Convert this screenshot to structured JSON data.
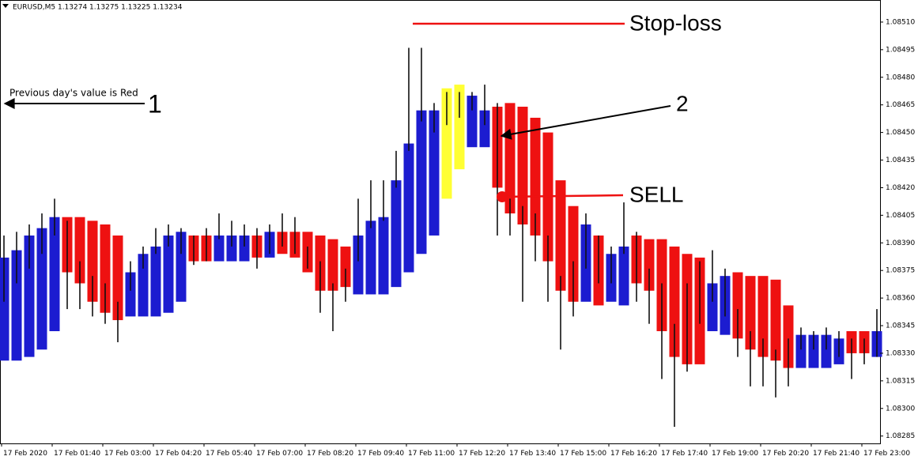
{
  "chart_data": {
    "type": "indicator",
    "title": "EURUSD,M5  1.13274 1.13275 1.13225 1.13234",
    "annotations": {
      "stop_loss": "Stop-loss",
      "sell": "SELL",
      "marker_1": "1",
      "marker_2": "2",
      "note_1": "Previous day's value is Red"
    },
    "categories": [
      "17 Feb 2020",
      null,
      null,
      null,
      "17 Feb 01:40",
      null,
      null,
      null,
      "17 Feb 03:00",
      null,
      null,
      null,
      "17 Feb 04:20",
      null,
      null,
      null,
      "17 Feb 05:40",
      null,
      null,
      null,
      "17 Feb 07:00",
      null,
      null,
      null,
      "17 Feb 08:20",
      null,
      null,
      null,
      "17 Feb 09:40",
      null,
      null,
      null,
      "17 Feb 11:00",
      null,
      null,
      null,
      "17 Feb 12:20",
      null,
      null,
      null,
      "17 Feb 13:40",
      null,
      null,
      null,
      "17 Feb 15:00",
      null,
      null,
      null,
      "17 Feb 16:20",
      null,
      null,
      null,
      "17 Feb 17:40",
      null,
      null,
      null,
      "17 Feb 19:00",
      null,
      null,
      null,
      "17 Feb 20:20",
      null,
      null,
      null,
      "17 Feb 21:40",
      null,
      null,
      null,
      "17 Feb 23:00",
      null,
      null,
      null,
      null,
      null
    ],
    "bars": {
      "top": [
        1.08382,
        1.08386,
        1.08394,
        1.08398,
        1.08404,
        1.08404,
        1.08404,
        1.08402,
        1.084,
        1.08394,
        1.08374,
        1.08384,
        1.08388,
        1.08394,
        1.08396,
        1.08394,
        1.08394,
        1.08394,
        1.08394,
        1.08394,
        1.08394,
        1.08396,
        1.08396,
        1.08396,
        1.08396,
        1.08394,
        1.08392,
        1.08388,
        1.08394,
        1.08402,
        1.08404,
        1.08424,
        1.08444,
        1.08462,
        1.08462,
        1.08474,
        1.08476,
        1.0847,
        1.08462,
        1.08464,
        1.08466,
        1.08464,
        1.08458,
        1.0845,
        1.08424,
        1.0841,
        1.084,
        1.08394,
        1.08384,
        1.08388,
        1.08394,
        1.08392,
        1.08392,
        1.08388,
        1.08384,
        1.08382,
        1.08368,
        1.08372,
        1.08374,
        1.08372,
        1.08372,
        1.0837,
        1.08356,
        1.0834,
        1.0834,
        1.0834,
        1.08338,
        1.08342,
        1.08342,
        1.08342
      ],
      "bottom": [
        1.08326,
        1.08326,
        1.08328,
        1.08332,
        1.08342,
        1.08374,
        1.08368,
        1.08358,
        1.08352,
        1.08348,
        1.0835,
        1.0835,
        1.0835,
        1.08352,
        1.08358,
        1.0838,
        1.0838,
        1.0838,
        1.0838,
        1.0838,
        1.08382,
        1.08382,
        1.08384,
        1.08382,
        1.08374,
        1.08364,
        1.08364,
        1.08366,
        1.08362,
        1.08362,
        1.08362,
        1.08366,
        1.08374,
        1.08384,
        1.08394,
        1.08414,
        1.0843,
        1.08442,
        1.08442,
        1.0842,
        1.08406,
        1.084,
        1.08394,
        1.0838,
        1.08364,
        1.08358,
        1.08358,
        1.08356,
        1.08358,
        1.08356,
        1.08368,
        1.08364,
        1.08342,
        1.08328,
        1.08324,
        1.08324,
        1.08342,
        1.0834,
        1.08338,
        1.08332,
        1.08328,
        1.08326,
        1.08322,
        1.08322,
        1.08322,
        1.08322,
        1.08324,
        1.0833,
        1.0833,
        1.08328
      ],
      "colors": [
        "#1c1cd0",
        "#1c1cd0",
        "#1c1cd0",
        "#1c1cd0",
        "#1c1cd0",
        "#ee1111",
        "#ee1111",
        "#ee1111",
        "#ee1111",
        "#ee1111",
        "#1c1cd0",
        "#1c1cd0",
        "#1c1cd0",
        "#1c1cd0",
        "#1c1cd0",
        "#ee1111",
        "#ee1111",
        "#1c1cd0",
        "#1c1cd0",
        "#1c1cd0",
        "#ee1111",
        "#1c1cd0",
        "#ee1111",
        "#ee1111",
        "#ee1111",
        "#ee1111",
        "#ee1111",
        "#ee1111",
        "#1c1cd0",
        "#1c1cd0",
        "#1c1cd0",
        "#1c1cd0",
        "#1c1cd0",
        "#1c1cd0",
        "#1c1cd0",
        "#ffff33",
        "#ffff33",
        "#1c1cd0",
        "#1c1cd0",
        "#ee1111",
        "#ee1111",
        "#ee1111",
        "#ee1111",
        "#ee1111",
        "#ee1111",
        "#ee1111",
        "#1c1cd0",
        "#ee1111",
        "#1c1cd0",
        "#1c1cd0",
        "#ee1111",
        "#ee1111",
        "#ee1111",
        "#ee1111",
        "#ee1111",
        "#ee1111",
        "#1c1cd0",
        "#1c1cd0",
        "#ee1111",
        "#ee1111",
        "#ee1111",
        "#ee1111",
        "#ee1111",
        "#1c1cd0",
        "#1c1cd0",
        "#1c1cd0",
        "#1c1cd0",
        "#ee1111",
        "#ee1111",
        "#1c1cd0"
      ]
    },
    "wicks": {
      "high": [
        1.08394,
        1.08396,
        1.084,
        1.08406,
        1.08414,
        1.08402,
        1.0838,
        1.08372,
        1.08368,
        1.08358,
        1.0838,
        1.08388,
        1.08398,
        1.084,
        1.08398,
        1.08394,
        1.08398,
        1.08406,
        1.08402,
        1.084,
        1.08398,
        1.084,
        1.08406,
        1.08404,
        1.08388,
        1.0838,
        1.08368,
        1.08376,
        1.08414,
        1.08424,
        1.08424,
        1.0844,
        1.08496,
        1.08496,
        1.08466,
        1.08472,
        1.08472,
        1.08472,
        1.08476,
        1.08466,
        1.08414,
        1.0841,
        1.08406,
        1.08394,
        1.08372,
        1.0838,
        1.08406,
        1.08394,
        1.08388,
        1.08412,
        1.08396,
        1.08376,
        1.08368,
        1.08346,
        1.08368,
        1.0838,
        1.08386,
        1.08376,
        1.08354,
        1.08342,
        1.08338,
        1.08332,
        1.08338,
        1.08344,
        1.08342,
        1.08344,
        1.08342,
        1.08338,
        1.08338,
        1.08354
      ],
      "low": [
        1.08358,
        1.08368,
        1.08376,
        1.08384,
        1.08394,
        1.08354,
        1.08354,
        1.0835,
        1.08346,
        1.08336,
        1.08364,
        1.08376,
        1.08384,
        1.08388,
        1.08384,
        1.08378,
        1.0838,
        1.08392,
        1.08388,
        1.08388,
        1.08376,
        1.08384,
        1.08388,
        1.08384,
        1.08376,
        1.08352,
        1.08342,
        1.08358,
        1.0838,
        1.08398,
        1.08402,
        1.0842,
        1.0844,
        1.08456,
        1.0845,
        1.08454,
        1.08458,
        1.08462,
        1.08454,
        1.08394,
        1.08394,
        1.08358,
        1.0838,
        1.08358,
        1.08332,
        1.0835,
        1.08376,
        1.08368,
        1.08368,
        1.08384,
        1.08358,
        1.08346,
        1.08316,
        1.0829,
        1.0832,
        1.08346,
        1.08358,
        1.0835,
        1.08328,
        1.08312,
        1.08312,
        1.08306,
        1.08312,
        1.08332,
        1.08332,
        1.08332,
        1.08328,
        1.08316,
        1.08324,
        1.08328
      ]
    },
    "ylim": [
      1.08281,
      1.08522
    ],
    "yticks": [
      {
        "value": 1.0851,
        "label": "1.08510"
      },
      1.08495,
      {
        "value": 1.0848,
        "label": "1.08480"
      },
      1.08465,
      {
        "value": 1.0845,
        "label": "1.08450"
      },
      1.08435,
      {
        "value": 1.0842,
        "label": "1.08420"
      },
      1.08405,
      {
        "value": 1.0839,
        "label": "1.08390"
      },
      1.08375,
      {
        "value": 1.0836,
        "label": "1.08360"
      },
      1.08345,
      {
        "value": 1.0833,
        "label": "1.08330"
      },
      1.08315,
      {
        "value": 1.083,
        "label": "1.08300"
      },
      1.08285
    ],
    "grid": false
  }
}
